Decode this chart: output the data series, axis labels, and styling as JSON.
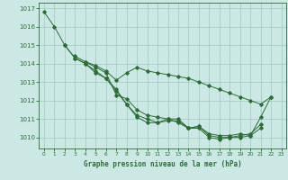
{
  "title": "Graphe pression niveau de la mer (hPa)",
  "bg_color": "#cce8e4",
  "grid_color": "#9ec8c0",
  "line_color": "#2d6b38",
  "xlim": [
    -0.5,
    23.5
  ],
  "ylim": [
    1009.4,
    1017.3
  ],
  "yticks": [
    1010,
    1011,
    1012,
    1013,
    1014,
    1015,
    1016,
    1017
  ],
  "xticks": [
    0,
    1,
    2,
    3,
    4,
    5,
    6,
    7,
    8,
    9,
    10,
    11,
    12,
    13,
    14,
    15,
    16,
    17,
    18,
    19,
    20,
    21,
    22,
    23
  ],
  "series": [
    [
      1016.8,
      1016.0,
      1015.0,
      1014.3,
      1014.0,
      1013.6,
      1013.2,
      1012.6,
      1011.8,
      1011.2,
      1011.0,
      1010.8,
      1011.0,
      1011.0,
      1010.5,
      1010.6,
      1010.1,
      1010.0,
      1010.0,
      1010.0,
      1010.1,
      1011.1,
      1012.2,
      null
    ],
    [
      null,
      null,
      1015.0,
      1014.3,
      1014.0,
      1013.5,
      1013.2,
      1012.5,
      1011.8,
      1011.1,
      1010.8,
      1010.8,
      1010.9,
      1010.9,
      1010.5,
      1010.5,
      1010.0,
      1009.9,
      1010.0,
      1010.1,
      1010.2,
      1010.7,
      null,
      null
    ],
    [
      null,
      null,
      null,
      1014.4,
      1014.1,
      1013.8,
      1013.5,
      1012.3,
      1012.1,
      1011.5,
      1011.2,
      1011.1,
      1011.0,
      1010.8,
      1010.5,
      1010.6,
      1010.2,
      1010.1,
      1010.1,
      1010.2,
      1010.1,
      1010.5,
      null,
      null
    ],
    [
      null,
      null,
      null,
      null,
      1014.1,
      1013.9,
      1013.6,
      1013.1,
      1013.5,
      1013.8,
      1013.6,
      1013.5,
      1013.4,
      1013.3,
      1013.2,
      1013.0,
      1012.8,
      1012.6,
      1012.4,
      1012.2,
      1012.0,
      1011.8,
      1012.2,
      null
    ]
  ]
}
